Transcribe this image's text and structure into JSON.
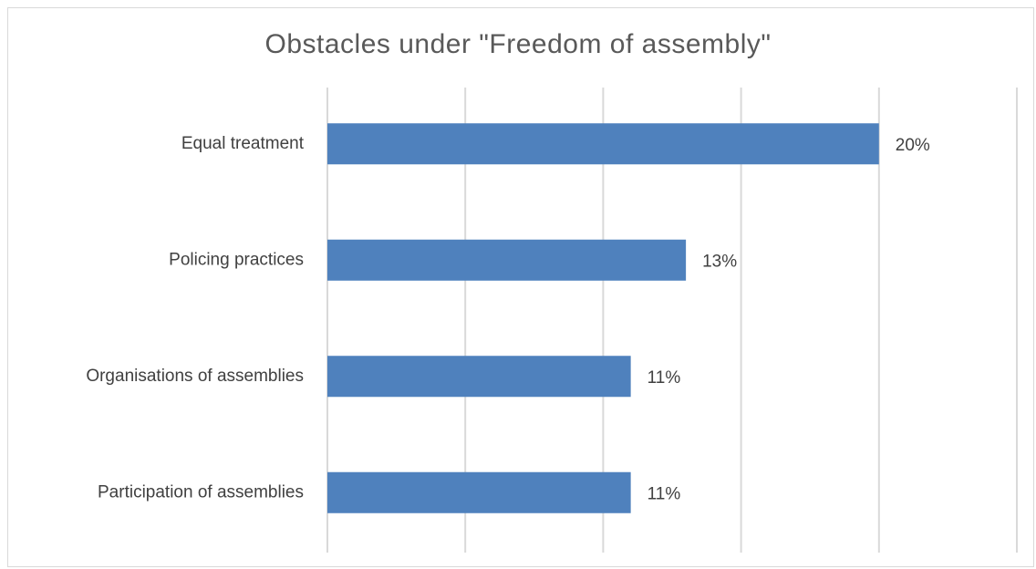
{
  "chart_data": {
    "type": "bar",
    "orientation": "horizontal",
    "title": "Obstacles under \"Freedom of assembly\"",
    "categories": [
      "Equal treatment",
      "Policing practices",
      "Organisations of assemblies",
      "Participation of assemblies"
    ],
    "values": [
      20,
      13,
      11,
      11
    ],
    "value_labels": [
      "20%",
      "13%",
      "11%",
      "11%"
    ],
    "xlim": [
      0,
      25
    ],
    "grid": true,
    "legend": "none",
    "bar_color": "#4f81bd",
    "grid_color": "#d9d9d9"
  }
}
